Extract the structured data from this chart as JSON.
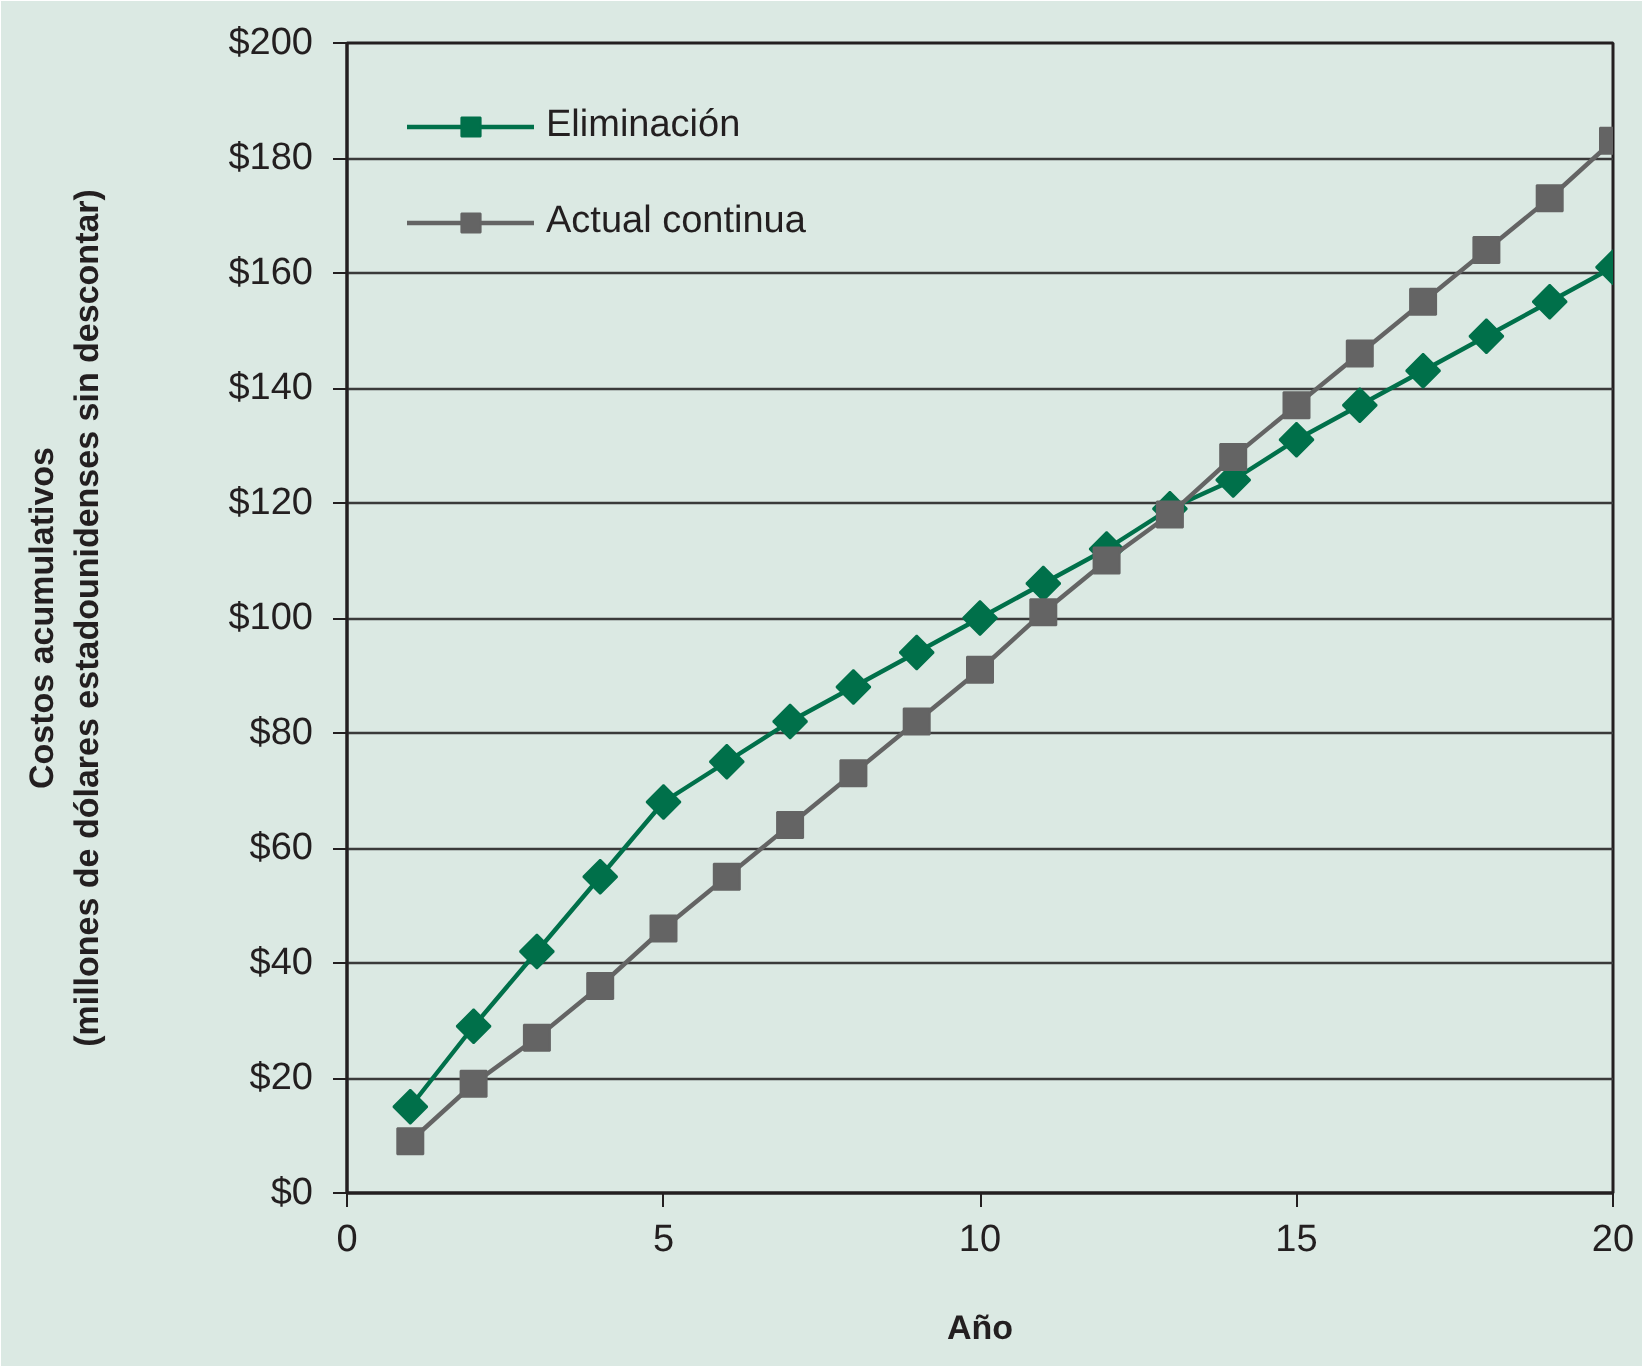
{
  "chart_data": {
    "type": "line",
    "xlabel": "Año",
    "ylabel": "Costos acumulativos\n(millones de dólares estadounidenses sin descontar)",
    "x": [
      1,
      2,
      3,
      4,
      5,
      6,
      7,
      8,
      9,
      10,
      11,
      12,
      13,
      14,
      15,
      16,
      17,
      18,
      19,
      20
    ],
    "series": [
      {
        "name": "Eliminación",
        "color": "#00704a",
        "marker": "diamond",
        "values": [
          15,
          29,
          42,
          55,
          68,
          75,
          82,
          88,
          94,
          100,
          106,
          112,
          119,
          124,
          131,
          137,
          143,
          149,
          155,
          161
        ]
      },
      {
        "name": "Actual continua",
        "color": "#646464",
        "marker": "square",
        "values": [
          9,
          19,
          27,
          36,
          46,
          55,
          64,
          73,
          82,
          91,
          101,
          110,
          118,
          128,
          137,
          146,
          155,
          164,
          173,
          183
        ]
      }
    ],
    "xlim": [
      0,
      20
    ],
    "xticks": [
      0,
      5,
      10,
      15,
      20
    ],
    "ylim": [
      0,
      200
    ],
    "yticks": [
      {
        "value": 0,
        "label": "$0"
      },
      {
        "value": 20,
        "label": "$20"
      },
      {
        "value": 40,
        "label": "$40"
      },
      {
        "value": 60,
        "label": "$60"
      },
      {
        "value": 80,
        "label": "$80"
      },
      {
        "value": 100,
        "label": "$100"
      },
      {
        "value": 120,
        "label": "$120"
      },
      {
        "value": 140,
        "label": "$140"
      },
      {
        "value": 160,
        "label": "$160"
      },
      {
        "value": 180,
        "label": "$180"
      },
      {
        "value": 200,
        "label": "$200"
      }
    ],
    "grid": "y",
    "legend": "top left",
    "line_style": "solid"
  }
}
